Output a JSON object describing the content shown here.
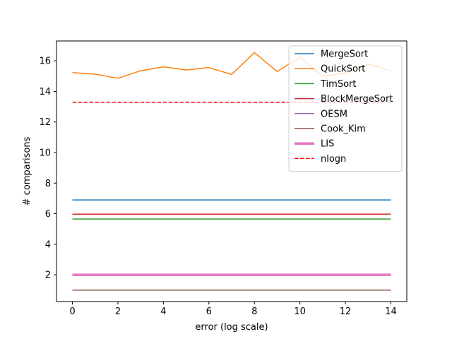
{
  "chart_data": {
    "type": "line",
    "title": "",
    "xlabel": "error (log scale)",
    "ylabel": "# comparisons",
    "xlim": [
      -0.7,
      14.7
    ],
    "ylim": [
      0.25,
      17.3
    ],
    "xticks": [
      0,
      2,
      4,
      6,
      8,
      10,
      12,
      14
    ],
    "yticks": [
      2,
      4,
      6,
      8,
      10,
      12,
      14,
      16
    ],
    "grid": false,
    "legend": "top-right",
    "x": [
      0,
      1,
      2,
      3,
      4,
      5,
      6,
      7,
      8,
      9,
      10,
      11,
      12,
      13,
      14
    ],
    "series": [
      {
        "name": "MergeSort",
        "color": "#1f77b4",
        "style": "solid",
        "width": 1.5,
        "values": [
          6.9,
          6.9,
          6.9,
          6.9,
          6.9,
          6.9,
          6.9,
          6.9,
          6.9,
          6.9,
          6.9,
          6.9,
          6.9,
          6.9,
          6.9
        ]
      },
      {
        "name": "QuickSort",
        "color": "#ff7f0e",
        "style": "solid",
        "width": 1.5,
        "values": [
          15.23,
          15.13,
          14.86,
          15.35,
          15.61,
          15.4,
          15.56,
          15.11,
          16.54,
          15.3,
          16.23,
          15.0,
          15.2,
          15.8,
          15.35
        ]
      },
      {
        "name": "TimSort",
        "color": "#2ca02c",
        "style": "solid",
        "width": 1.5,
        "values": [
          5.65,
          5.65,
          5.65,
          5.65,
          5.65,
          5.65,
          5.65,
          5.65,
          5.65,
          5.65,
          5.65,
          5.65,
          5.65,
          5.65,
          5.65
        ]
      },
      {
        "name": "BlockMergeSort",
        "color": "#d62728",
        "style": "solid",
        "width": 1.5,
        "values": [
          5.97,
          5.97,
          5.97,
          5.97,
          5.97,
          5.97,
          5.97,
          5.97,
          5.97,
          5.97,
          5.97,
          5.97,
          5.97,
          5.97,
          5.97
        ]
      },
      {
        "name": "OESM",
        "color": "#9467bd",
        "style": "solid",
        "width": 1.5,
        "values": [
          2.0,
          2.0,
          2.0,
          2.0,
          2.0,
          2.0,
          2.0,
          2.0,
          2.0,
          2.0,
          2.0,
          2.0,
          2.0,
          2.0,
          2.0
        ]
      },
      {
        "name": "Cook_Kim",
        "color": "#8c564b",
        "style": "solid",
        "width": 1.5,
        "values": [
          1.0,
          1.0,
          1.0,
          1.0,
          1.0,
          1.0,
          1.0,
          1.0,
          1.0,
          1.0,
          1.0,
          1.0,
          1.0,
          1.0,
          1.0
        ]
      },
      {
        "name": "LIS",
        "color": "#e377c2",
        "style": "solid",
        "width": 3.5,
        "values": [
          2.0,
          2.0,
          2.0,
          2.0,
          2.0,
          2.0,
          2.0,
          2.0,
          2.0,
          2.0,
          2.0,
          2.0,
          2.0,
          2.0,
          2.0
        ]
      },
      {
        "name": "nlogn",
        "color": "#ff0000",
        "style": "dashed",
        "width": 1.5,
        "values": [
          13.29,
          13.29,
          13.29,
          13.29,
          13.29,
          13.29,
          13.29,
          13.29,
          13.29,
          13.29,
          13.29,
          13.29,
          13.29,
          13.29,
          13.29
        ]
      }
    ]
  }
}
